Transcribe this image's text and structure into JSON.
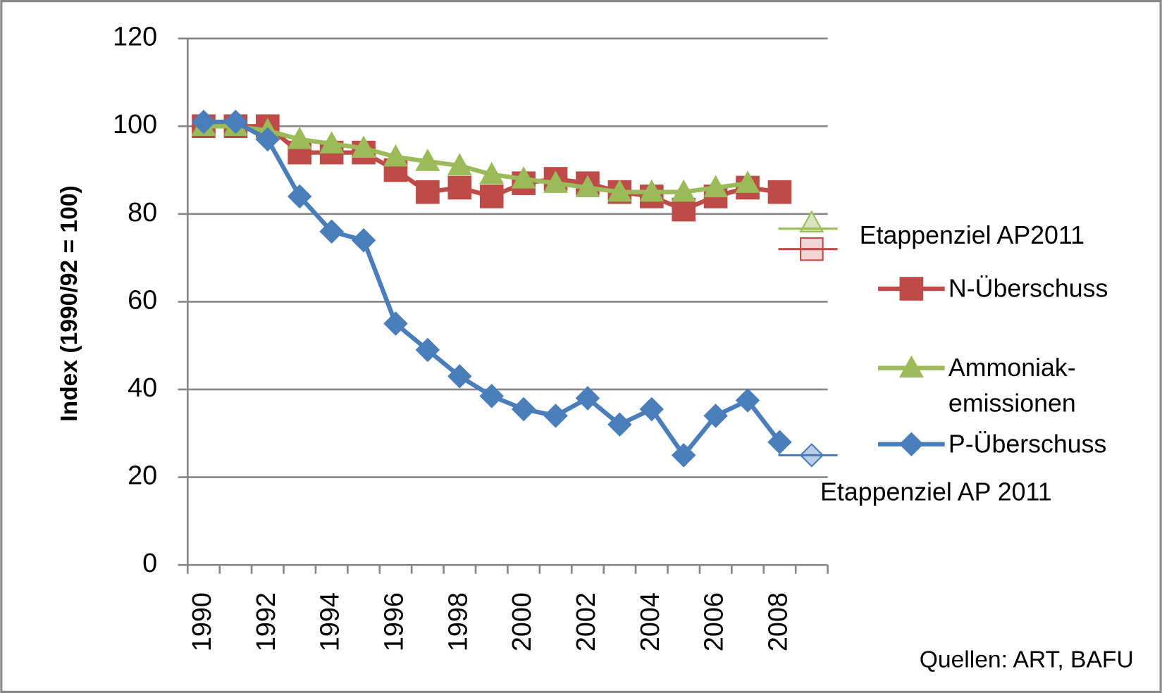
{
  "chart_data": {
    "type": "line",
    "y_label": "Index (1990/92 = 100)",
    "categories": [
      "1990",
      null,
      "1992",
      null,
      "1994",
      null,
      "1996",
      null,
      "1998",
      null,
      "2000",
      null,
      "2002",
      null,
      "2004",
      null,
      "2006",
      null,
      "2008",
      null
    ],
    "ylim": [
      0,
      120
    ],
    "yticks": [
      0,
      20,
      40,
      60,
      80,
      100,
      120
    ],
    "grid": true,
    "series": [
      {
        "name": "N-Überschuss",
        "color": "#be4b48",
        "marker": "square",
        "values": [
          100,
          100,
          100,
          94,
          94,
          94,
          90,
          85,
          86,
          84,
          87,
          88,
          87,
          85,
          84,
          81,
          84,
          86,
          85,
          null
        ],
        "target": 72
      },
      {
        "name": "Ammoniak-emissionen",
        "color": "#9bbb59",
        "marker": "triangle",
        "values": [
          100,
          100,
          99,
          97,
          96,
          95,
          93,
          92,
          91,
          89,
          88,
          87,
          86,
          85,
          85,
          85,
          86,
          87,
          null,
          null
        ],
        "target": 78
      },
      {
        "name": "P-Überschuss",
        "color": "#4a7ebb",
        "marker": "diamond",
        "values": [
          101,
          101,
          97,
          84,
          76,
          74,
          55,
          49,
          43,
          38.5,
          35.5,
          34,
          38,
          32,
          35.5,
          25,
          34,
          37.5,
          28,
          null
        ],
        "target": 25
      }
    ],
    "annotations": [
      "Etappenziel  AP2011",
      "Etappenziel  AP 2011"
    ],
    "source": "Quellen: ART, BAFU"
  }
}
